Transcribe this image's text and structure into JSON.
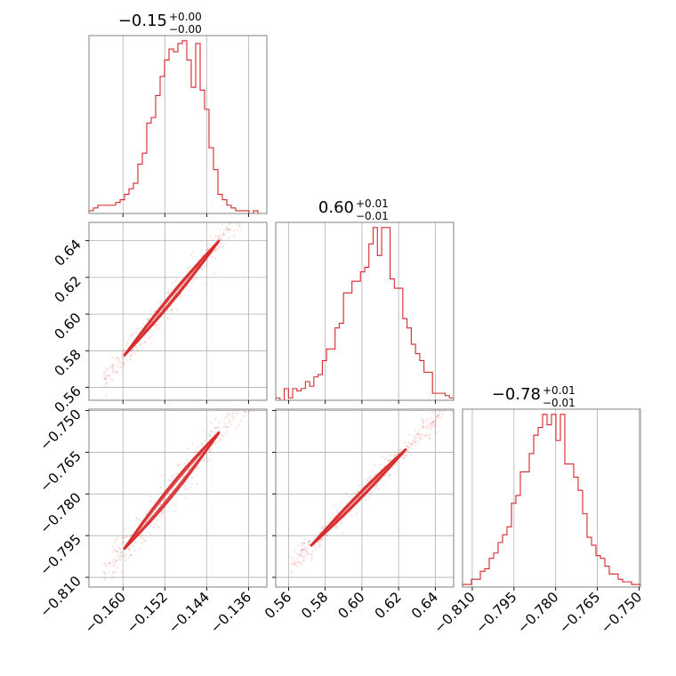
{
  "chart_data": {
    "type": "corner",
    "color": "#d62728",
    "grid": true,
    "parameters": [
      {
        "title": {
          "median": "−0.15",
          "upper": "+0.00",
          "lower": "−0.00"
        },
        "range": [
          -0.1665,
          -0.1325
        ],
        "ticks": [
          -0.16,
          -0.152,
          -0.144,
          -0.136
        ],
        "tick_labels": [
          "−0.160",
          "−0.152",
          "−0.144",
          "−0.136"
        ],
        "hist": [
          1,
          2,
          3,
          3,
          3,
          3,
          4,
          5,
          7,
          9,
          11,
          18,
          22,
          33,
          35,
          43,
          50,
          56,
          60,
          59,
          62,
          63,
          56,
          46,
          62,
          45,
          38,
          24,
          16,
          7,
          5,
          3,
          2,
          1,
          1,
          1,
          0,
          1,
          0,
          0
        ]
      },
      {
        "title": {
          "median": "0.60",
          "upper": "+0.01",
          "lower": "−0.01"
        },
        "range": [
          0.553,
          0.65
        ],
        "ticks": [
          0.56,
          0.58,
          0.6,
          0.62,
          0.64
        ],
        "tick_labels": [
          "0.56",
          "0.58",
          "0.60",
          "0.62",
          "0.64"
        ],
        "hist": [
          1,
          0,
          5,
          1,
          5,
          4,
          5,
          8,
          6,
          10,
          11,
          17,
          22,
          22,
          31,
          33,
          46,
          46,
          51,
          51,
          55,
          57,
          67,
          74,
          62,
          74,
          74,
          52,
          48,
          48,
          35,
          31,
          24,
          20,
          17,
          12,
          12,
          3,
          3,
          3,
          2,
          1
        ]
      },
      {
        "title": {
          "median": "−0.78",
          "upper": "+0.01",
          "lower": "−0.01"
        },
        "range": [
          -0.8135,
          -0.7495
        ],
        "ticks": [
          -0.81,
          -0.795,
          -0.78,
          -0.765,
          -0.75
        ],
        "tick_labels": [
          "−0.810",
          "−0.795",
          "−0.780",
          "−0.765",
          "−0.750"
        ],
        "hist": [
          1,
          1,
          3,
          3,
          6,
          7,
          11,
          13,
          17,
          20,
          23,
          32,
          35,
          44,
          44,
          51,
          58,
          61,
          66,
          62,
          66,
          56,
          66,
          47,
          47,
          42,
          37,
          28,
          19,
          16,
          12,
          11,
          8,
          5,
          5,
          3,
          2,
          2,
          1,
          1
        ]
      }
    ],
    "pairs": [
      {
        "x": 0,
        "y": 1,
        "slope": 3.45,
        "intercept": 1.1286,
        "spread": 0.0023
      },
      {
        "x": 0,
        "y": 2,
        "slope": 2.31,
        "intercept": -0.4307,
        "spread": 0.0022
      },
      {
        "x": 1,
        "y": 2,
        "slope": 0.67,
        "intercept": -1.182,
        "spread": 0.0012
      }
    ]
  }
}
